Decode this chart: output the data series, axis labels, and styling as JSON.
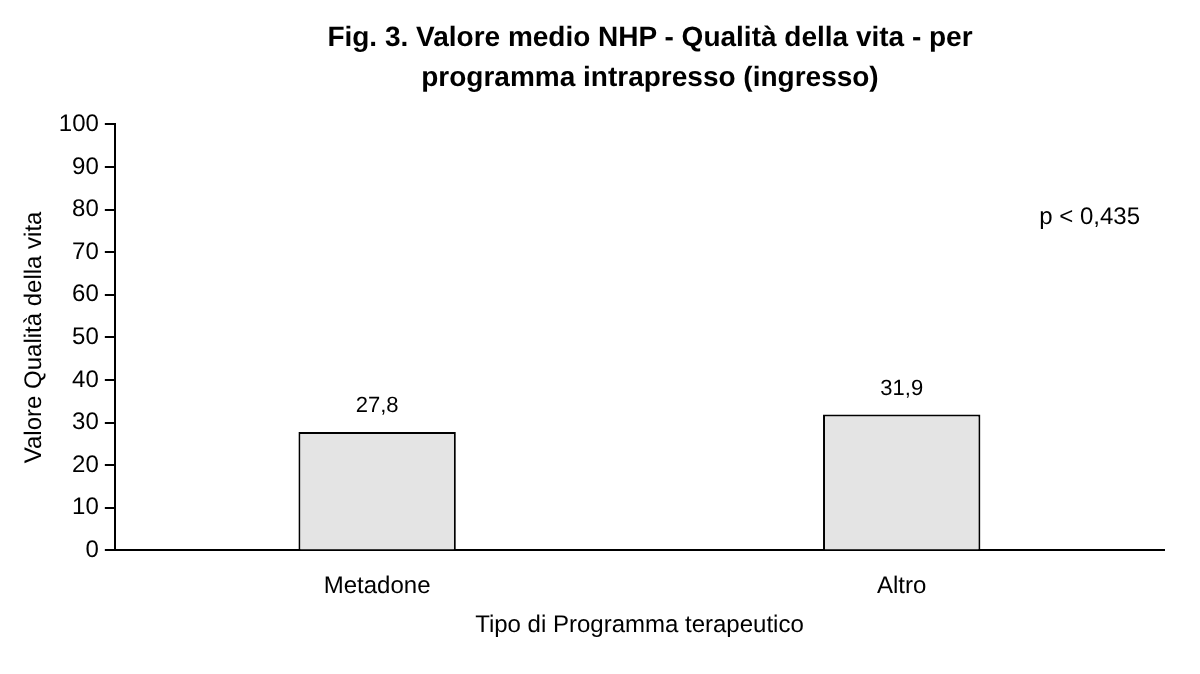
{
  "chart_data": {
    "type": "bar",
    "title": "Fig. 3. Valore medio NHP - Qualità della vita - per programma intrapresso (ingresso)",
    "xlabel": "Tipo di Programma terapeutico",
    "ylabel": "Valore Qualità della vita",
    "categories": [
      "Metadone",
      "Altro"
    ],
    "values": [
      27.8,
      31.9
    ],
    "value_labels": [
      "27,8",
      "31,9"
    ],
    "color": "#e4e4e4",
    "ylim": [
      0,
      100
    ],
    "yticks": [
      0,
      10,
      20,
      30,
      40,
      50,
      60,
      70,
      80,
      90,
      100
    ],
    "grid": false,
    "legend": false,
    "annotations": [
      "p < 0,435"
    ]
  }
}
